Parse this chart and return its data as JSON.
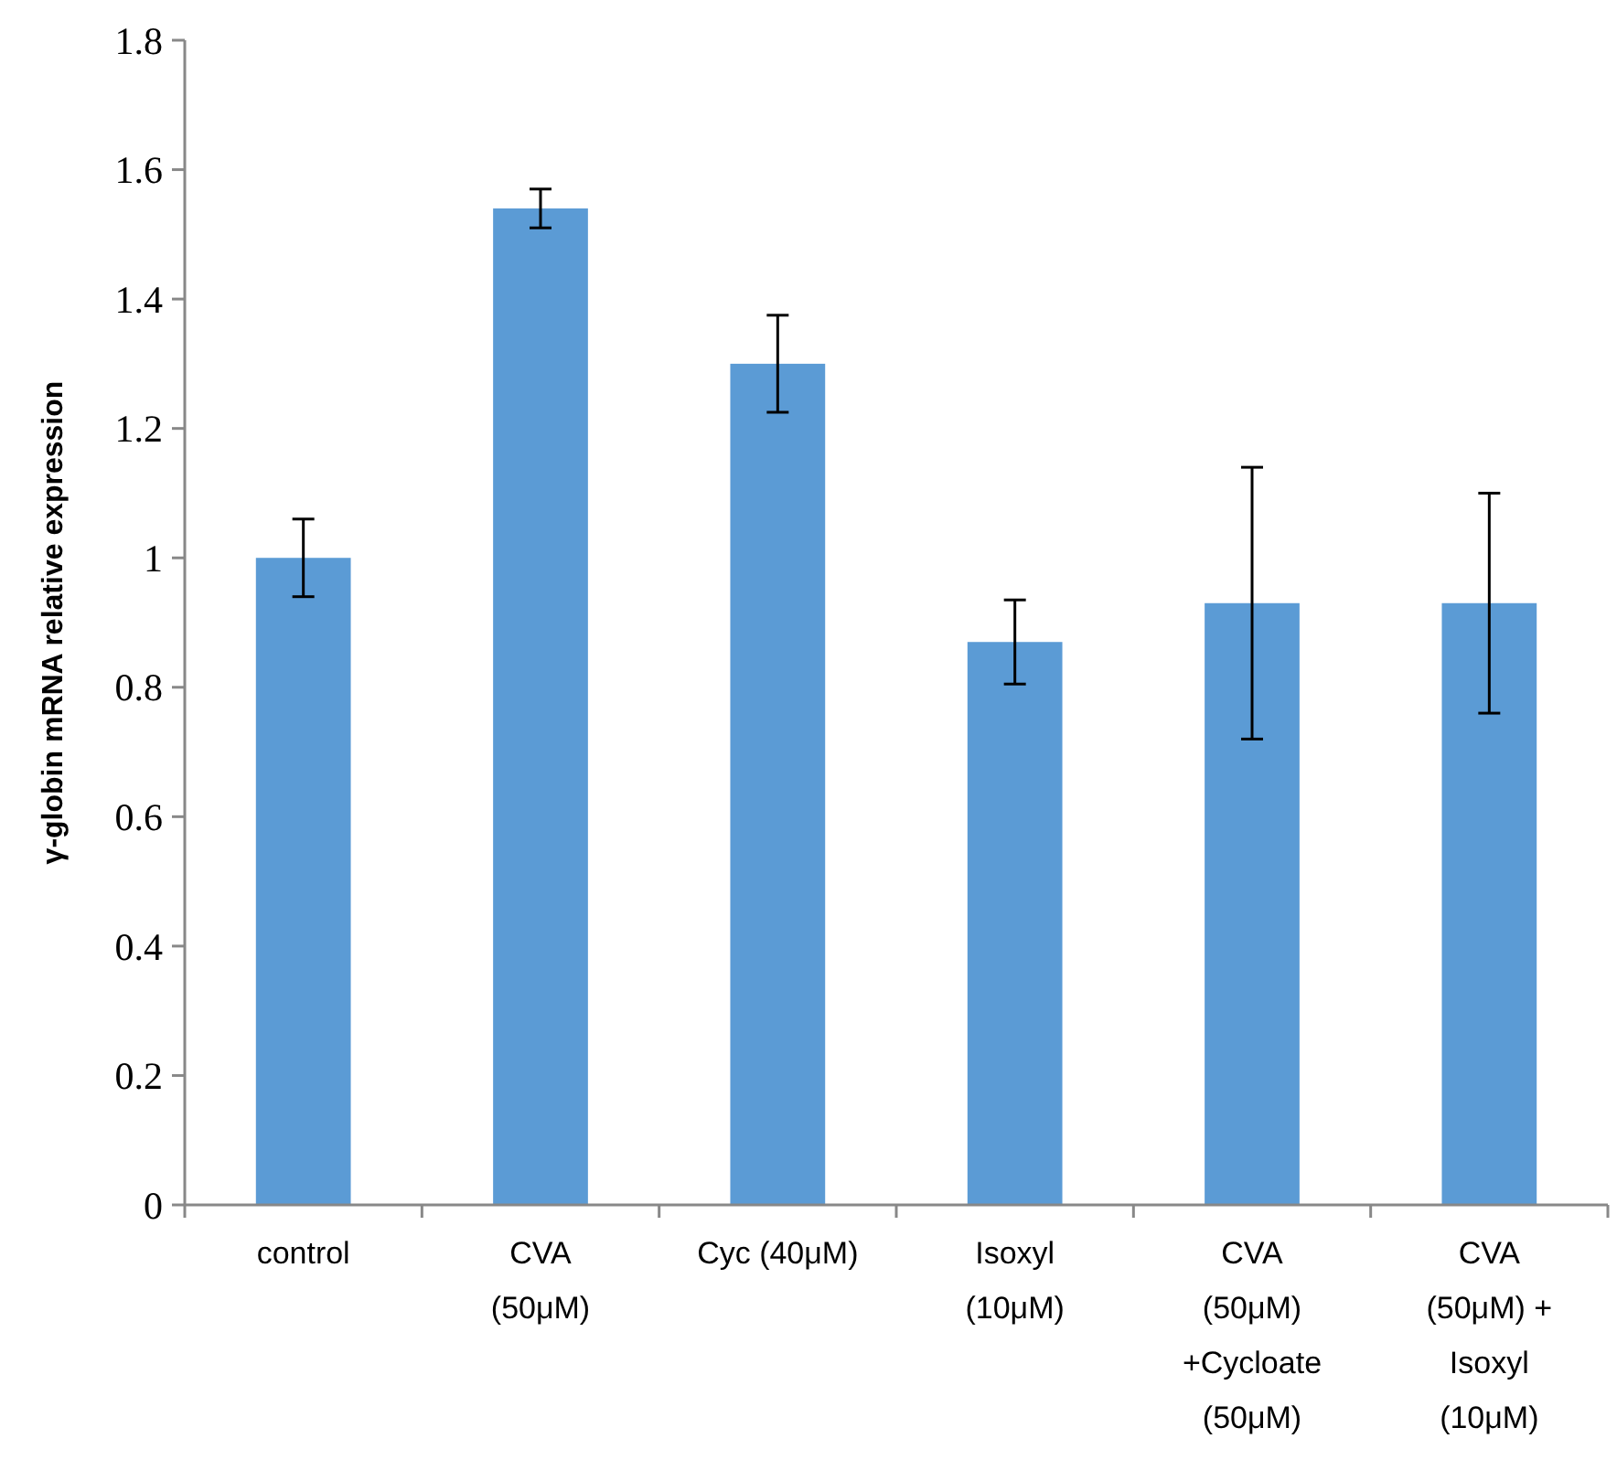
{
  "chart_data": {
    "type": "bar",
    "ylabel": "γ-globin mRNA relative expression",
    "categories": [
      "control",
      "CVA\n(50μM)",
      "Cyc (40μM)",
      "Isoxyl\n(10μM)",
      "CVA\n(50μM)\n+Cycloate\n(50μM)",
      "CVA\n(50μM) +\nIsoxyl\n(10μM)"
    ],
    "values": [
      1.0,
      1.54,
      1.3,
      0.87,
      0.93,
      0.93
    ],
    "errors": [
      0.06,
      0.03,
      0.075,
      0.065,
      0.21,
      0.17
    ],
    "color": "#5b9bd5",
    "ylim": [
      0,
      1.8
    ],
    "yticks": [
      0,
      0.2,
      0.4,
      0.6,
      0.8,
      1,
      1.2,
      1.4,
      1.6,
      1.8
    ],
    "grid": false
  }
}
